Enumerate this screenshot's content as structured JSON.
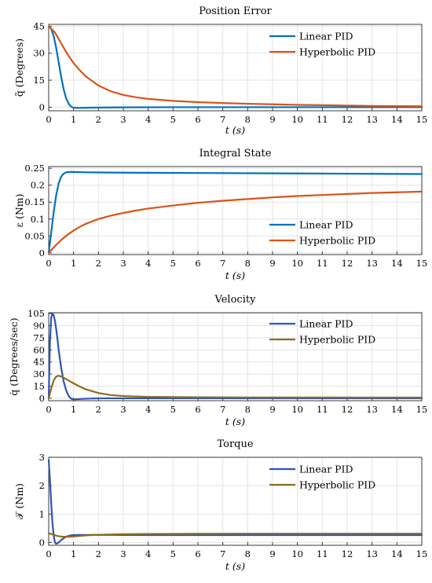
{
  "chart_data": [
    {
      "type": "line",
      "title": "Position Error",
      "xlabel": "t (s)",
      "ylabel": "q̃ (Degrees)",
      "xlim": [
        0,
        15
      ],
      "ylim": [
        -2,
        46
      ],
      "xticks": [
        "0",
        "1",
        "2",
        "3",
        "4",
        "5",
        "6",
        "7",
        "8",
        "9",
        "10",
        "11",
        "12",
        "13",
        "14",
        "15"
      ],
      "yticks": [
        "0",
        "15",
        "30",
        "45"
      ],
      "grid": true,
      "legend_position": "top-right",
      "series": [
        {
          "name": "Linear PID",
          "color": "#0072BD",
          "x": [
            0,
            0.1,
            0.2,
            0.3,
            0.4,
            0.5,
            0.6,
            0.7,
            0.8,
            0.9,
            1.0,
            1.2,
            1.5,
            2,
            3,
            5,
            8,
            11,
            15
          ],
          "y": [
            45,
            43.5,
            39.5,
            33,
            25,
            17,
            10,
            5,
            2,
            0.3,
            -0.3,
            -0.4,
            -0.3,
            -0.2,
            -0.1,
            0,
            0,
            0,
            0
          ]
        },
        {
          "name": "Hyperbolic PID",
          "color": "#D95319",
          "x": [
            0,
            0.25,
            0.5,
            0.75,
            1,
            1.25,
            1.5,
            2,
            2.5,
            3,
            3.5,
            4,
            5,
            6,
            7,
            8,
            9,
            10,
            11,
            12,
            13,
            14,
            15
          ],
          "y": [
            45,
            41.5,
            35.5,
            29.5,
            24.5,
            20.5,
            17,
            12,
            8.8,
            6.8,
            5.5,
            4.6,
            3.5,
            2.8,
            2.3,
            1.9,
            1.6,
            1.3,
            1.1,
            0.9,
            0.7,
            0.6,
            0.5
          ]
        }
      ]
    },
    {
      "type": "line",
      "title": "Integral State",
      "xlabel": "t (s)",
      "ylabel": "ε (Nm)",
      "xlim": [
        0,
        15
      ],
      "ylim": [
        -0.005,
        0.255
      ],
      "xticks": [
        "0",
        "1",
        "2",
        "3",
        "4",
        "5",
        "6",
        "7",
        "8",
        "9",
        "10",
        "11",
        "12",
        "13",
        "14",
        "15"
      ],
      "yticks": [
        "0",
        "0.05",
        "0.1",
        "0.15",
        "0.2",
        "0.25"
      ],
      "grid": true,
      "legend_position": "bottom-right",
      "series": [
        {
          "name": "Linear PID",
          "color": "#0072BD",
          "x": [
            0,
            0.1,
            0.2,
            0.3,
            0.4,
            0.5,
            0.6,
            0.7,
            0.8,
            1.0,
            1.5,
            3,
            6,
            9,
            12,
            15
          ],
          "y": [
            0,
            0.06,
            0.12,
            0.17,
            0.205,
            0.225,
            0.234,
            0.238,
            0.239,
            0.239,
            0.238,
            0.237,
            0.236,
            0.235,
            0.234,
            0.233
          ]
        },
        {
          "name": "Hyperbolic PID",
          "color": "#D95319",
          "x": [
            0,
            0.25,
            0.5,
            0.75,
            1,
            1.25,
            1.5,
            2,
            2.5,
            3,
            3.5,
            4,
            5,
            6,
            7,
            8,
            9,
            10,
            11,
            12,
            13,
            14,
            15
          ],
          "y": [
            0,
            0.02,
            0.038,
            0.053,
            0.066,
            0.077,
            0.086,
            0.1,
            0.11,
            0.118,
            0.125,
            0.131,
            0.14,
            0.148,
            0.154,
            0.159,
            0.164,
            0.168,
            0.171,
            0.174,
            0.177,
            0.179,
            0.181
          ]
        }
      ]
    },
    {
      "type": "line",
      "title": "Velocity",
      "xlabel": "t (s)",
      "ylabel": "q̇ (Degrees/sec)",
      "xlim": [
        0,
        15
      ],
      "ylim": [
        -3,
        106
      ],
      "xticks": [
        "0",
        "1",
        "2",
        "3",
        "4",
        "5",
        "6",
        "7",
        "8",
        "9",
        "10",
        "11",
        "12",
        "13",
        "14",
        "15"
      ],
      "yticks": [
        "0",
        "15",
        "30",
        "45",
        "60",
        "75",
        "90",
        "105"
      ],
      "grid": true,
      "legend_position": "top-right",
      "series": [
        {
          "name": "Linear PID",
          "color": "#2E54B8",
          "x": [
            0,
            0.05,
            0.1,
            0.15,
            0.2,
            0.25,
            0.3,
            0.35,
            0.4,
            0.5,
            0.6,
            0.7,
            0.8,
            0.9,
            1.0,
            1.2,
            1.5,
            2,
            3,
            5,
            15
          ],
          "y": [
            0,
            70,
            100,
            105,
            103,
            96,
            86,
            74,
            60,
            38,
            21,
            10,
            3,
            -0.5,
            -1.5,
            -1,
            -0.5,
            0,
            0,
            0,
            0
          ]
        },
        {
          "name": "Hyperbolic PID",
          "color": "#8C6D1F",
          "x": [
            0,
            0.1,
            0.2,
            0.3,
            0.4,
            0.5,
            0.6,
            0.8,
            1.0,
            1.25,
            1.5,
            2,
            2.5,
            3,
            3.5,
            4,
            5,
            6,
            8,
            10,
            15
          ],
          "y": [
            0,
            12,
            22,
            27,
            28,
            27,
            25.5,
            22,
            18.5,
            14.5,
            11,
            6.5,
            4,
            2.8,
            2.2,
            1.8,
            1.5,
            1.3,
            1.1,
            1.0,
            0.9
          ]
        }
      ]
    },
    {
      "type": "line",
      "title": "Torque",
      "xlabel": "t (s)",
      "ylabel": "𝒯 (Nm)",
      "xlim": [
        0,
        15
      ],
      "ylim": [
        -0.1,
        3.0
      ],
      "xticks": [
        "0",
        "1",
        "2",
        "3",
        "4",
        "5",
        "6",
        "7",
        "8",
        "9",
        "10",
        "11",
        "12",
        "13",
        "14",
        "15"
      ],
      "yticks": [
        "0",
        "1",
        "2",
        "3"
      ],
      "grid": true,
      "legend_position": "top-right",
      "series": [
        {
          "name": "Linear PID",
          "color": "#2E54B8",
          "x": [
            0,
            0.05,
            0.1,
            0.15,
            0.2,
            0.25,
            0.3,
            0.4,
            0.5,
            0.6,
            0.7,
            0.8,
            0.9,
            1.0,
            1.2,
            1.5,
            2,
            4,
            8,
            15
          ],
          "y": [
            2.9,
            2.2,
            1.4,
            0.7,
            0.25,
            0.0,
            -0.05,
            0.0,
            0.08,
            0.15,
            0.2,
            0.23,
            0.25,
            0.26,
            0.265,
            0.265,
            0.265,
            0.26,
            0.26,
            0.26
          ]
        },
        {
          "name": "Hyperbolic PID",
          "color": "#8C6D1F",
          "x": [
            0,
            0.1,
            0.2,
            0.3,
            0.4,
            0.5,
            0.6,
            0.8,
            1.0,
            1.25,
            1.5,
            2,
            3,
            4,
            6,
            8,
            10,
            15
          ],
          "y": [
            0.32,
            0.3,
            0.27,
            0.24,
            0.22,
            0.21,
            0.2,
            0.2,
            0.21,
            0.23,
            0.25,
            0.27,
            0.29,
            0.3,
            0.305,
            0.31,
            0.31,
            0.31
          ]
        }
      ]
    }
  ]
}
